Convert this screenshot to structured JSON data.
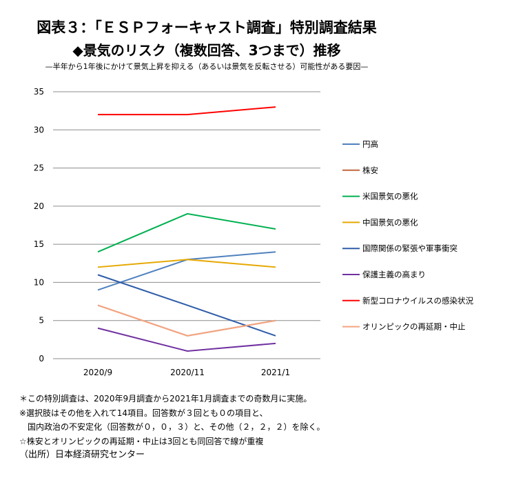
{
  "title": "図表３：「ＥＳＰフォーキャスト調査」特別調査結果",
  "subtitle": "◆景気のリスク（複数回答、3つまで）推移",
  "caption": "—半年から1年後にかけて景気上昇を抑える（あるいは景気を反転させる）可能性がある要因—",
  "chart_data": {
    "type": "line",
    "categories": [
      "2020/9",
      "2020/11",
      "2021/1"
    ],
    "ylim": [
      0,
      35
    ],
    "yticks": [
      0,
      5,
      10,
      15,
      20,
      25,
      30,
      35
    ],
    "grid": true,
    "legend_position": "right",
    "series": [
      {
        "name": "円高",
        "color": "#4f81bd",
        "values": [
          9,
          13,
          14
        ]
      },
      {
        "name": "株安",
        "color": "#c0663a",
        "values": [
          7,
          3,
          5
        ]
      },
      {
        "name": "米国景気の悪化",
        "color": "#00b050",
        "values": [
          14,
          19,
          17
        ]
      },
      {
        "name": "中国景気の悪化",
        "color": "#e6a800",
        "values": [
          12,
          13,
          12
        ]
      },
      {
        "name": "国際関係の緊張や軍事衝突",
        "color": "#2e5ca8",
        "values": [
          11,
          7,
          3
        ]
      },
      {
        "name": "保護主義の高まり",
        "color": "#7030a0",
        "values": [
          4,
          1,
          2
        ]
      },
      {
        "name": "新型コロナウイルスの感染状況",
        "color": "#ff0000",
        "values": [
          32,
          32,
          33
        ]
      },
      {
        "name": "オリンピックの再延期・中止",
        "color": "#f4a582",
        "values": [
          7,
          3,
          5
        ]
      }
    ]
  },
  "notes": [
    "＊この特別調査は、2020年9月調査から2021年1月調査までの奇数月に実施。",
    "※選択肢はその他を入れて14項目。回答数が３回とも０の項目と、",
    "　国内政治の不安定化（回答数が０，０，３）と、その他（２，２，２）を除く。",
    "☆株安とオリンピックの再延期・中止は3回とも同回答で線が重複",
    "（出所）日本経済研究センター"
  ]
}
